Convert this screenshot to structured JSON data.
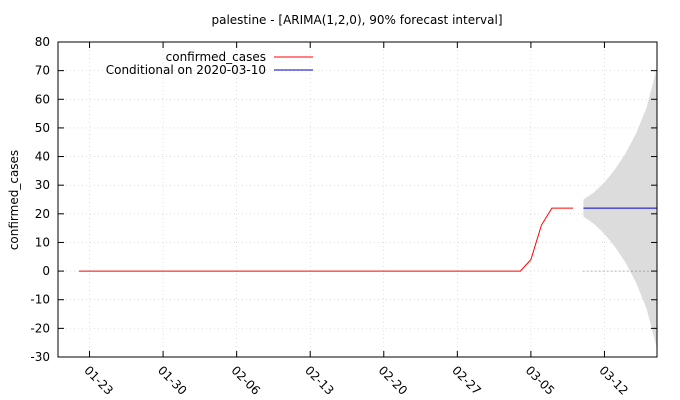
{
  "chart_data": {
    "type": "line",
    "title": "palestine -  [ARIMA(1,2,0), 90% forecast interval]",
    "xlabel": "",
    "ylabel": "confirmed_cases",
    "ylim": [
      -30,
      80
    ],
    "xlim": [
      "2020-01-20",
      "2020-03-17"
    ],
    "yticks": [
      -30,
      -20,
      -10,
      0,
      10,
      20,
      30,
      40,
      50,
      60,
      70,
      80
    ],
    "xticks": [
      {
        "date": "2020-01-23",
        "label": "01-23"
      },
      {
        "date": "2020-01-30",
        "label": "01-30"
      },
      {
        "date": "2020-02-06",
        "label": "02-06"
      },
      {
        "date": "2020-02-13",
        "label": "02-13"
      },
      {
        "date": "2020-02-20",
        "label": "02-20"
      },
      {
        "date": "2020-02-27",
        "label": "02-27"
      },
      {
        "date": "2020-03-05",
        "label": "03-05"
      },
      {
        "date": "2020-03-12",
        "label": "03-12"
      }
    ],
    "grid": true,
    "legend_position": "top-left",
    "series": [
      {
        "name": "confirmed_cases",
        "color": "#ff0000",
        "points": [
          [
            "2020-01-22",
            0
          ],
          [
            "2020-03-04",
            0
          ],
          [
            "2020-03-05",
            4
          ],
          [
            "2020-03-06",
            16
          ],
          [
            "2020-03-07",
            22
          ],
          [
            "2020-03-09",
            22
          ]
        ]
      },
      {
        "name": "Conditional on 2020-03-10",
        "color": "#0000cc",
        "points": [
          [
            "2020-03-10",
            22
          ],
          [
            "2020-03-17",
            22
          ]
        ]
      }
    ],
    "forecast_interval": {
      "color": "#dcdcdc",
      "points": [
        [
          "2020-03-10",
          19,
          25
        ],
        [
          "2020-03-11",
          16.5,
          27.5
        ],
        [
          "2020-03-12",
          13,
          31
        ],
        [
          "2020-03-13",
          8.5,
          35.5
        ],
        [
          "2020-03-14",
          3,
          41
        ],
        [
          "2020-03-15",
          -4,
          48
        ],
        [
          "2020-03-16",
          -13,
          57
        ],
        [
          "2020-03-17",
          -27,
          71
        ]
      ]
    },
    "zero_line": {
      "y": 0,
      "from": "2020-03-10",
      "to": "2020-03-17"
    }
  }
}
